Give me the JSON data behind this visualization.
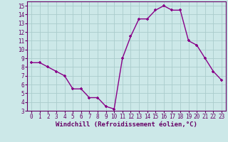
{
  "x": [
    0,
    1,
    2,
    3,
    4,
    5,
    6,
    7,
    8,
    9,
    10,
    11,
    12,
    13,
    14,
    15,
    16,
    17,
    18,
    19,
    20,
    21,
    22,
    23
  ],
  "y": [
    8.5,
    8.5,
    8.0,
    7.5,
    7.0,
    5.5,
    5.5,
    4.5,
    4.5,
    3.5,
    3.2,
    9.0,
    11.5,
    13.5,
    13.5,
    14.5,
    15.0,
    14.5,
    14.5,
    11.0,
    10.5,
    9.0,
    7.5,
    6.5
  ],
  "line_color": "#880088",
  "marker": "+",
  "markersize": 3.5,
  "markeredgewidth": 1.2,
  "linewidth": 1.0,
  "xlabel": "Windchill (Refroidissement éolien,°C)",
  "xlabel_fontsize": 6.5,
  "xlim": [
    -0.5,
    23.5
  ],
  "ylim": [
    3,
    15.5
  ],
  "yticks": [
    3,
    4,
    5,
    6,
    7,
    8,
    9,
    10,
    11,
    12,
    13,
    14,
    15
  ],
  "xticks": [
    0,
    1,
    2,
    3,
    4,
    5,
    6,
    7,
    8,
    9,
    10,
    11,
    12,
    13,
    14,
    15,
    16,
    17,
    18,
    19,
    20,
    21,
    22,
    23
  ],
  "background_color": "#cce8e8",
  "grid_color": "#aacccc",
  "tick_fontsize": 5.5,
  "label_color": "#660066"
}
